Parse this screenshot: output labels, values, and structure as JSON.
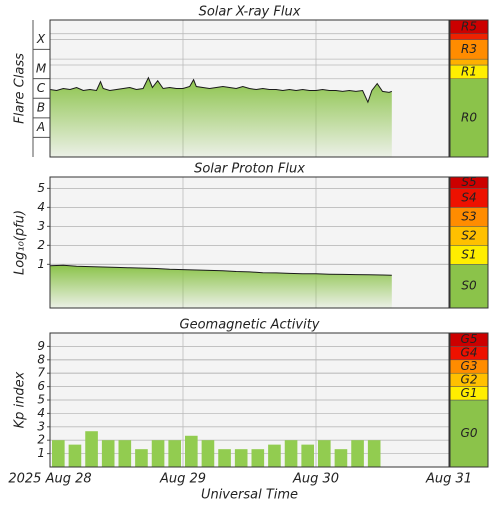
{
  "chart_data": [
    {
      "type": "line",
      "title": "Solar X-ray Flux",
      "ylabel": "Flare Class",
      "color": "#1a1a1a",
      "fill_color": "#8bc34a",
      "xlim": [
        0,
        3
      ],
      "xticks": [
        1,
        2
      ],
      "ylim": [
        -9,
        -2
      ],
      "yticks": [
        {
          "value": -7.5,
          "label": "A"
        },
        {
          "value": -6.5,
          "label": "B"
        },
        {
          "value": -5.5,
          "label": "C"
        },
        {
          "value": -4.5,
          "label": "M"
        },
        {
          "value": -3,
          "label": "X"
        }
      ],
      "grid": false,
      "levels": [
        {
          "label": "R0",
          "color": "#8bc34a"
        },
        {
          "label": "R1",
          "color": "#ffee00",
          "min": -5
        },
        {
          "label": null,
          "color": "#ffb000",
          "min": -4.3
        },
        {
          "label": "R3",
          "color": "#ff8c00",
          "min": -4
        },
        {
          "label": null,
          "color": "#ee2200",
          "min": -3
        },
        {
          "label": "R5",
          "color": "#cc0000",
          "min": -2.7
        }
      ],
      "x": [
        0,
        0.05,
        0.1,
        0.15,
        0.2,
        0.25,
        0.3,
        0.35,
        0.38,
        0.4,
        0.45,
        0.5,
        0.55,
        0.6,
        0.65,
        0.7,
        0.74,
        0.77,
        0.81,
        0.85,
        0.9,
        0.95,
        1.0,
        1.05,
        1.08,
        1.1,
        1.15,
        1.2,
        1.25,
        1.3,
        1.35,
        1.4,
        1.45,
        1.5,
        1.55,
        1.6,
        1.65,
        1.7,
        1.75,
        1.8,
        1.85,
        1.9,
        1.95,
        2.0,
        2.05,
        2.1,
        2.15,
        2.2,
        2.25,
        2.3,
        2.35,
        2.39,
        2.42,
        2.46,
        2.5,
        2.55,
        2.57
      ],
      "values": [
        -5.55,
        -5.6,
        -5.5,
        -5.55,
        -5.45,
        -5.6,
        -5.55,
        -5.6,
        -5.15,
        -5.5,
        -5.6,
        -5.55,
        -5.5,
        -5.45,
        -5.55,
        -5.5,
        -4.95,
        -5.45,
        -5.1,
        -5.5,
        -5.45,
        -5.5,
        -5.5,
        -5.4,
        -5.05,
        -5.4,
        -5.45,
        -5.5,
        -5.45,
        -5.4,
        -5.45,
        -5.5,
        -5.4,
        -5.5,
        -5.55,
        -5.5,
        -5.55,
        -5.55,
        -5.6,
        -5.55,
        -5.6,
        -5.55,
        -5.6,
        -5.6,
        -5.55,
        -5.6,
        -5.6,
        -5.65,
        -5.6,
        -5.65,
        -5.6,
        -6.2,
        -5.6,
        -5.25,
        -5.65,
        -5.7,
        -5.65
      ]
    },
    {
      "type": "line",
      "title": "Solar Proton Flux",
      "ylabel": "Log₁₀(pfu)",
      "color": "#1a1a1a",
      "fill_color": "#8bc34a",
      "xlim": [
        0,
        3
      ],
      "xticks": [
        1,
        2
      ],
      "ylim": [
        -1.3,
        5.6
      ],
      "yticks": [
        1,
        2,
        3,
        4,
        5
      ],
      "grid": true,
      "levels": [
        {
          "label": "S0",
          "color": "#8bc34a"
        },
        {
          "label": "S1",
          "color": "#ffee00",
          "min": 1
        },
        {
          "label": "S2",
          "color": "#ffc000",
          "min": 2
        },
        {
          "label": "S3",
          "color": "#ff8c00",
          "min": 3
        },
        {
          "label": "S4",
          "color": "#ee1100",
          "min": 4
        },
        {
          "label": "S5",
          "color": "#cc0000",
          "min": 5
        }
      ],
      "x": [
        0,
        0.1,
        0.2,
        0.3,
        0.4,
        0.5,
        0.6,
        0.7,
        0.8,
        0.9,
        1.0,
        1.1,
        1.2,
        1.3,
        1.4,
        1.5,
        1.6,
        1.7,
        1.8,
        1.9,
        2.0,
        2.1,
        2.2,
        2.3,
        2.4,
        2.5,
        2.57
      ],
      "values": [
        0.93,
        0.95,
        0.9,
        0.88,
        0.86,
        0.84,
        0.82,
        0.8,
        0.78,
        0.74,
        0.72,
        0.7,
        0.68,
        0.66,
        0.62,
        0.6,
        0.56,
        0.55,
        0.52,
        0.5,
        0.5,
        0.48,
        0.47,
        0.46,
        0.45,
        0.44,
        0.43
      ]
    },
    {
      "type": "bar",
      "title": "Geomagnetic Activity",
      "ylabel": "Kp index",
      "xlabel": "Universal Time",
      "color": "#92cc50",
      "xlim": [
        0,
        3
      ],
      "xticks": [
        {
          "value": 0,
          "label": "2025 Aug 28"
        },
        {
          "value": 1,
          "label": "Aug 29"
        },
        {
          "value": 2,
          "label": "Aug 30"
        },
        {
          "value": 3,
          "label": "Aug 31"
        }
      ],
      "ylim": [
        0,
        10
      ],
      "yticks": [
        1,
        2,
        3,
        4,
        5,
        6,
        7,
        8,
        9
      ],
      "grid": true,
      "levels": [
        {
          "label": "G0",
          "color": "#8bc34a"
        },
        {
          "label": "G1",
          "color": "#ffee00",
          "min": 5
        },
        {
          "label": "G2",
          "color": "#ffc000",
          "min": 6
        },
        {
          "label": "G3",
          "color": "#ff8c00",
          "min": 7
        },
        {
          "label": "G4",
          "color": "#ee1100",
          "min": 8
        },
        {
          "label": "G5",
          "color": "#cc0000",
          "min": 9
        }
      ],
      "x": [
        0,
        0.125,
        0.25,
        0.375,
        0.5,
        0.625,
        0.75,
        0.875,
        1.0,
        1.125,
        1.25,
        1.375,
        1.5,
        1.625,
        1.75,
        1.875,
        2.0,
        2.125,
        2.25,
        2.375
      ],
      "values": [
        2,
        1.67,
        2.67,
        2,
        2,
        1.33,
        2,
        2,
        2.33,
        2,
        1.33,
        1.33,
        1.33,
        1.67,
        2,
        1.67,
        2,
        1.33,
        2,
        2
      ]
    }
  ]
}
